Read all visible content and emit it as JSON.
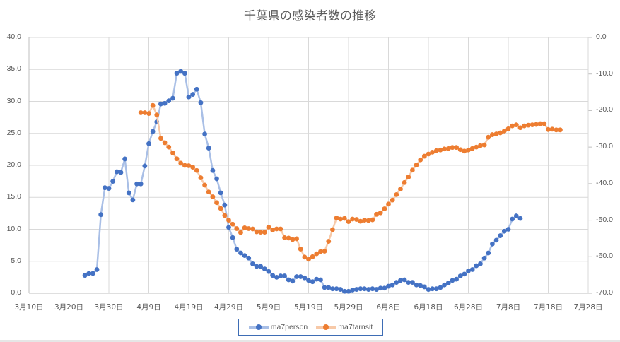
{
  "title": "千葉県の感染者数の推移",
  "legend": {
    "items": [
      {
        "label": "ma7person",
        "color": "#4472c4",
        "line_color": "#a9bfe6"
      },
      {
        "label": "ma7tarnsit",
        "color": "#ed7d31",
        "line_color": "#f7c9a8"
      }
    ]
  },
  "chart_data": {
    "type": "line",
    "title": "千葉県の感染者数の推移",
    "xlabel": "",
    "ylabel": "",
    "x_tick_labels": [
      "3月10日",
      "3月20日",
      "3月30日",
      "4月9日",
      "4月19日",
      "4月29日",
      "5月9日",
      "5月19日",
      "5月29日",
      "6月8日",
      "6月18日",
      "6月28日",
      "7月8日",
      "7月18日",
      "7月28日"
    ],
    "x_range_days_from_mar10": [
      0,
      140
    ],
    "left_axis": {
      "ylim": [
        0,
        40
      ],
      "ticks": [
        "0.0",
        "5.0",
        "10.0",
        "15.0",
        "20.0",
        "25.0",
        "30.0",
        "35.0",
        "40.0"
      ]
    },
    "right_axis": {
      "ylim": [
        -70,
        0
      ],
      "ticks": [
        "-70.0",
        "-60.0",
        "-50.0",
        "-40.0",
        "-30.0",
        "-20.0",
        "-10.0",
        "0.0"
      ]
    },
    "grid": true,
    "legend_position": "bottom",
    "series": [
      {
        "name": "ma7person",
        "axis": "left",
        "start_day": 14,
        "start_date": "3月24日",
        "values": [
          2.8,
          3.1,
          3.1,
          3.7,
          12.3,
          16.5,
          16.4,
          17.5,
          19.0,
          18.9,
          21.0,
          15.7,
          14.6,
          17.1,
          17.1,
          19.9,
          23.4,
          25.3,
          26.8,
          29.6,
          29.7,
          30.1,
          30.5,
          34.4,
          34.7,
          34.4,
          30.7,
          31.1,
          31.9,
          29.8,
          24.9,
          22.7,
          19.2,
          17.9,
          15.7,
          13.8,
          10.3,
          8.7,
          6.9,
          6.3,
          5.9,
          5.5,
          4.6,
          4.2,
          4.2,
          3.8,
          3.4,
          2.8,
          2.5,
          2.7,
          2.7,
          2.1,
          1.9,
          2.6,
          2.6,
          2.4,
          2.0,
          1.8,
          2.2,
          2.1,
          0.9,
          0.9,
          0.7,
          0.7,
          0.6,
          0.3,
          0.3,
          0.5,
          0.6,
          0.7,
          0.7,
          0.6,
          0.7,
          0.6,
          0.8,
          0.8,
          1.1,
          1.3,
          1.7,
          2.0,
          2.1,
          1.7,
          1.7,
          1.3,
          1.2,
          1.0,
          0.6,
          0.7,
          0.7,
          0.9,
          1.3,
          1.6,
          2.0,
          2.2,
          2.7,
          3.0,
          3.5,
          3.7,
          4.3,
          4.6,
          5.5,
          6.3,
          7.7,
          8.3,
          9.0,
          9.7,
          10.0,
          11.6,
          12.1,
          11.7
        ]
      },
      {
        "name": "ma7tarnsit",
        "axis": "right",
        "start_day": 28,
        "start_date": "4月7日",
        "values": [
          -20.6,
          -20.6,
          -20.8,
          -18.6,
          -21.2,
          -27.6,
          -28.8,
          -30.0,
          -31.6,
          -33.2,
          -34.4,
          -35.0,
          -35.1,
          -35.5,
          -36.4,
          -38.4,
          -40.4,
          -42.3,
          -43.6,
          -45.2,
          -46.8,
          -48.7,
          -50.0,
          -51.1,
          -52.3,
          -53.4,
          -52.1,
          -52.3,
          -52.4,
          -53.2,
          -53.3,
          -53.3,
          -51.9,
          -52.7,
          -52.4,
          -52.4,
          -54.8,
          -54.9,
          -55.3,
          -55.1,
          -57.9,
          -60.1,
          -60.7,
          -60.0,
          -59.2,
          -58.6,
          -58.5,
          -55.8,
          -52.6,
          -49.4,
          -49.7,
          -49.5,
          -50.4,
          -49.7,
          -49.8,
          -50.3,
          -50.0,
          -50.1,
          -49.9,
          -48.4,
          -48.0,
          -46.9,
          -45.6,
          -44.5,
          -43.0,
          -41.5,
          -39.7,
          -38.2,
          -36.3,
          -34.9,
          -33.5,
          -32.5,
          -31.9,
          -31.4,
          -31.0,
          -30.8,
          -30.5,
          -30.4,
          -30.1,
          -30.1,
          -30.7,
          -31.1,
          -30.8,
          -30.4,
          -30.0,
          -29.6,
          -29.4,
          -27.3,
          -26.6,
          -26.4,
          -26.1,
          -25.6,
          -25.0,
          -24.2,
          -23.9,
          -24.7,
          -24.2,
          -24.0,
          -23.9,
          -23.8,
          -23.6,
          -23.6,
          -25.2,
          -25.1,
          -25.3,
          -25.3
        ]
      }
    ]
  }
}
